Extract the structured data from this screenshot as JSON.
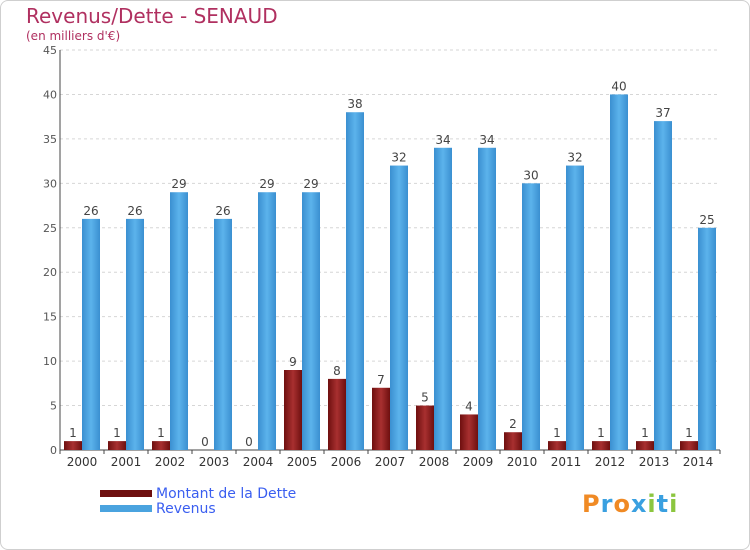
{
  "header": {
    "title": "Revenus/Dette - SENAUD",
    "subtitle": "(en milliers d'€)"
  },
  "legend": {
    "items": [
      {
        "label": "Montant de la Dette",
        "color": "#8b1a1a"
      },
      {
        "label": "Revenus",
        "color": "#4aa3df"
      }
    ]
  },
  "logo": {
    "text": "Proxiti"
  },
  "colors": {
    "debt": "#8b1a1a",
    "revenue": "#4aa3df",
    "accent": "#b03060"
  },
  "chart_data": {
    "type": "bar",
    "title": "Revenus/Dette - SENAUD",
    "subtitle": "(en milliers d'€)",
    "categories": [
      "2000",
      "2001",
      "2002",
      "2003",
      "2004",
      "2005",
      "2006",
      "2007",
      "2008",
      "2009",
      "2010",
      "2011",
      "2012",
      "2013",
      "2014"
    ],
    "series": [
      {
        "name": "Montant de la Dette",
        "values": [
          1,
          1,
          1,
          0,
          0,
          9,
          8,
          7,
          5,
          4,
          2,
          1,
          1,
          1,
          1
        ]
      },
      {
        "name": "Revenus",
        "values": [
          26,
          26,
          29,
          26,
          29,
          29,
          38,
          32,
          34,
          34,
          30,
          32,
          40,
          37,
          25
        ]
      }
    ],
    "ylim": [
      0,
      45
    ],
    "yticks": [
      0,
      5,
      10,
      15,
      20,
      25,
      30,
      35,
      40,
      45
    ],
    "grid": true,
    "legend_position": "bottom-left"
  }
}
